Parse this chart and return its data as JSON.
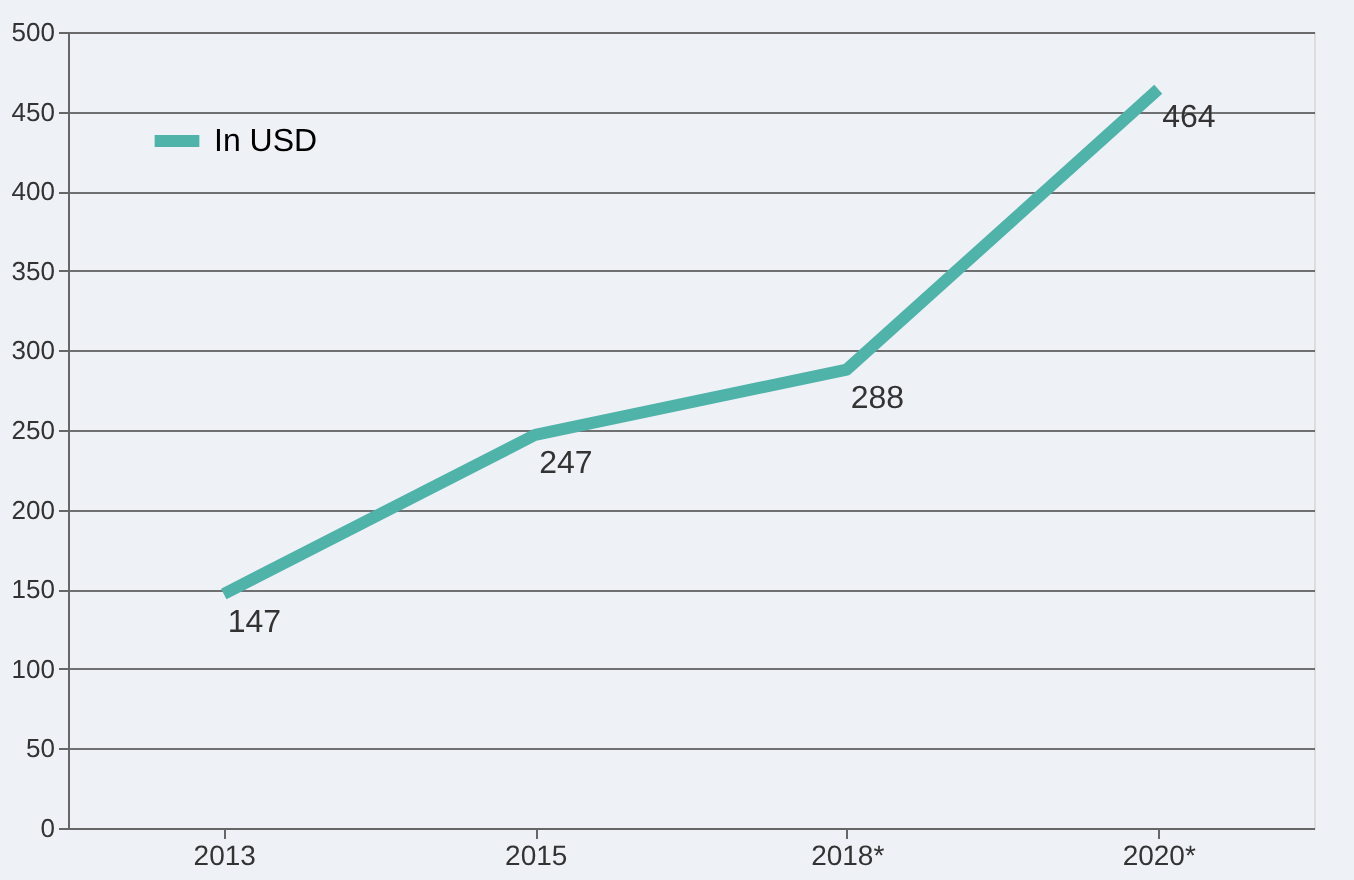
{
  "chart_data": {
    "type": "line",
    "categories": [
      "2013",
      "2015",
      "2018*",
      "2020*"
    ],
    "series": [
      {
        "name": "In USD",
        "color": "#4fb3aa",
        "values": [
          147,
          247,
          288,
          464
        ]
      }
    ],
    "ylim": [
      0,
      500
    ],
    "yticks": [
      0,
      50,
      100,
      150,
      200,
      250,
      300,
      350,
      400,
      450,
      500
    ],
    "grid": "y",
    "legend": "top left",
    "data_labels": true,
    "marker": "none",
    "line_style": "solid"
  }
}
